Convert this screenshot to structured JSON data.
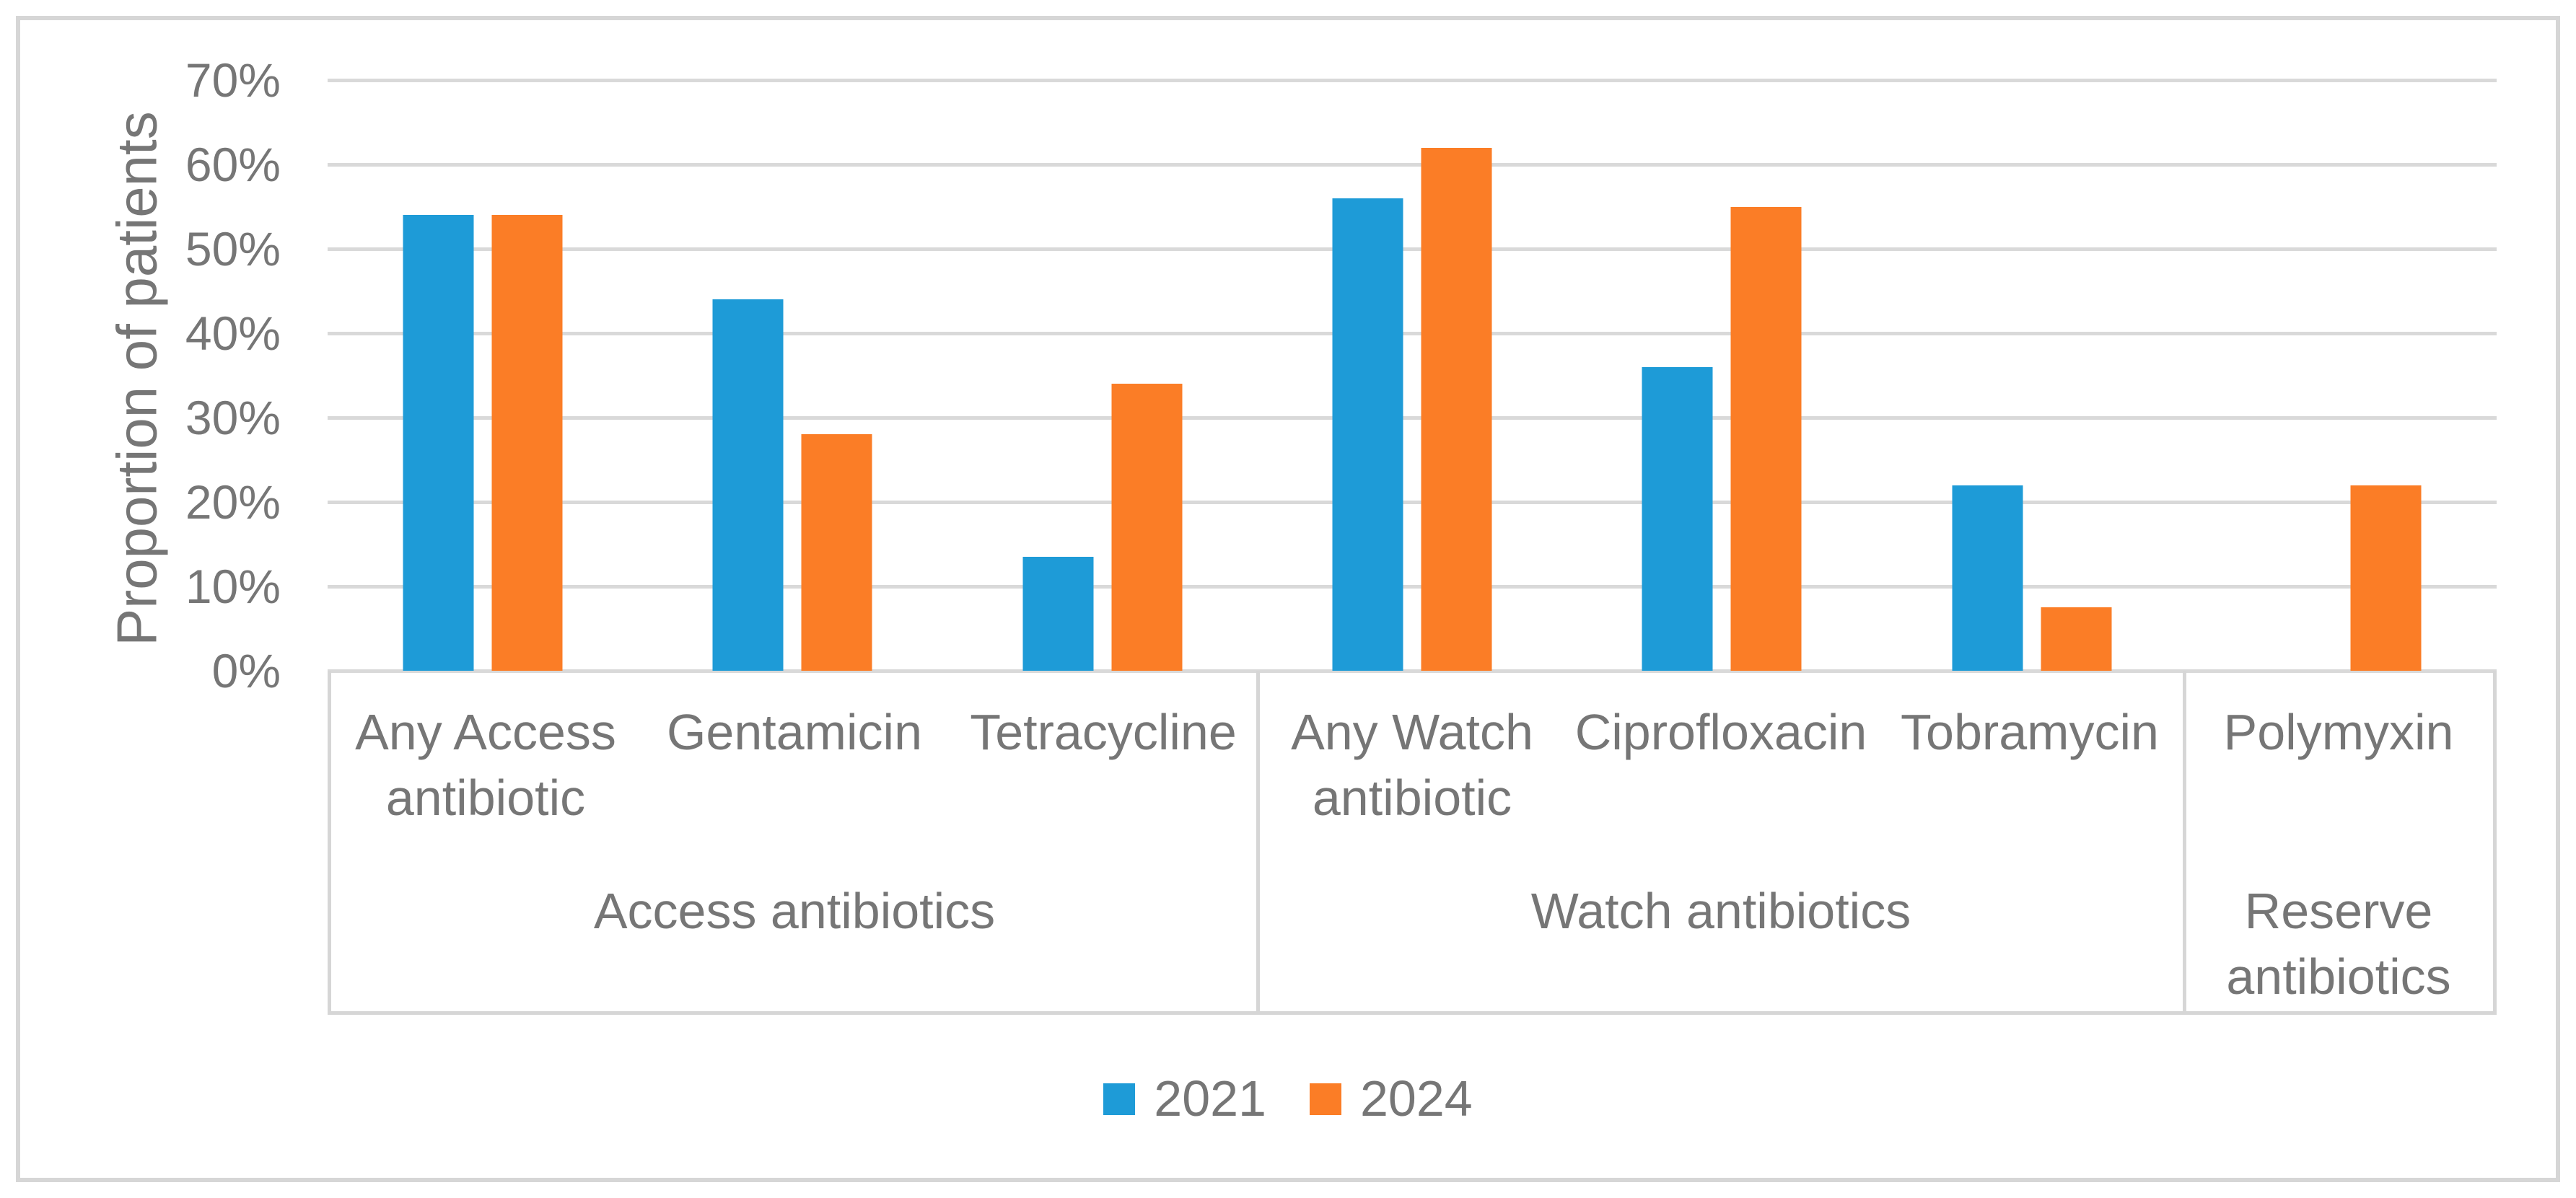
{
  "figure": {
    "background": "#FFFFFF",
    "border_color": "#D6D6D6"
  },
  "style": {
    "gridline_color": "#D9D9D9",
    "axis_box_color": "#D6D6D6",
    "text_color": "#767676"
  },
  "chart_data": {
    "type": "bar",
    "title": "",
    "xlabel": "",
    "ylabel": "Proportion of patients",
    "ylim": [
      0,
      70
    ],
    "grid": true,
    "legend_position": "bottom-center",
    "yticks": [
      {
        "label": "0%",
        "value": 0
      },
      {
        "label": "10%",
        "value": 10
      },
      {
        "label": "20%",
        "value": 20
      },
      {
        "label": "30%",
        "value": 30
      },
      {
        "label": "40%",
        "value": 40
      },
      {
        "label": "50%",
        "value": 50
      },
      {
        "label": "60%",
        "value": 60
      },
      {
        "label": "70%",
        "value": 70
      }
    ],
    "groups": [
      {
        "label": "Access antibiotics",
        "categories": [
          "Any Access antibiotic",
          "Gentamicin",
          "Tetracycline"
        ]
      },
      {
        "label": "Watch antibiotics",
        "categories": [
          "Any Watch antibiotic",
          "Ciprofloxacin",
          "Tobramycin"
        ]
      },
      {
        "label": "Reserve antibiotics",
        "categories": [
          "Polymyxin"
        ]
      }
    ],
    "categories": [
      "Any Access antibiotic",
      "Gentamicin",
      "Tetracycline",
      "Any Watch antibiotic",
      "Ciprofloxacin",
      "Tobramycin",
      "Polymyxin"
    ],
    "series": [
      {
        "name": "2021",
        "color": "#1E9BD7",
        "values": [
          54,
          44,
          13.5,
          56,
          36,
          22,
          0
        ]
      },
      {
        "name": "2024",
        "color": "#FB7D26",
        "values": [
          54,
          28,
          34,
          62,
          55,
          7.5,
          22
        ]
      }
    ]
  }
}
